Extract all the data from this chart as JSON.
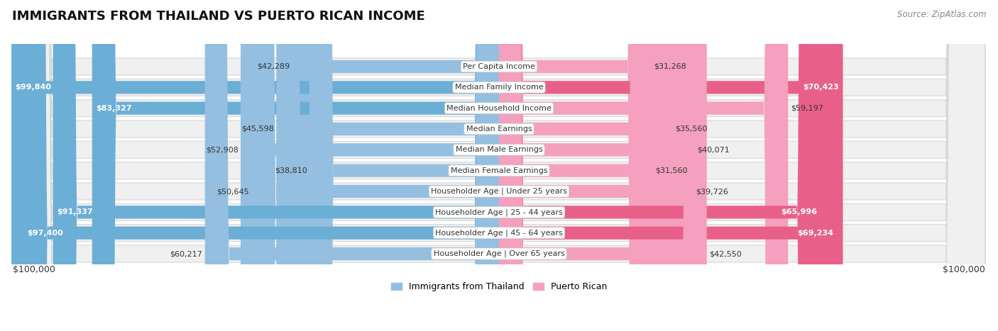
{
  "title": "IMMIGRANTS FROM THAILAND VS PUERTO RICAN INCOME",
  "source": "Source: ZipAtlas.com",
  "categories": [
    "Per Capita Income",
    "Median Family Income",
    "Median Household Income",
    "Median Earnings",
    "Median Male Earnings",
    "Median Female Earnings",
    "Householder Age | Under 25 years",
    "Householder Age | 25 - 44 years",
    "Householder Age | 45 - 64 years",
    "Householder Age | Over 65 years"
  ],
  "thailand_values": [
    42289,
    99840,
    83327,
    45598,
    52908,
    38810,
    50645,
    91337,
    97400,
    60217
  ],
  "puerto_rican_values": [
    31268,
    70423,
    59197,
    35560,
    40071,
    31560,
    39726,
    65996,
    69234,
    42550
  ],
  "max_value": 100000,
  "thailand_color_light": "#94bfe0",
  "thailand_color_dark": "#6baed6",
  "puerto_rican_color_light": "#f4a0be",
  "puerto_rican_color_dark": "#e8608a",
  "thailand_label": "Immigrants from Thailand",
  "puerto_rican_label": "Puerto Rican",
  "row_bg": "#f0f0f0",
  "row_border": "#d8d8d8",
  "xlabel_left": "$100,000",
  "xlabel_right": "$100,000"
}
